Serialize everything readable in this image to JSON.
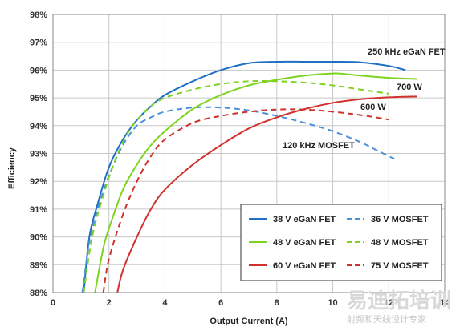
{
  "chart_data": {
    "type": "line",
    "title": "",
    "xlabel": "Output Current (A)",
    "ylabel": "Efficiency",
    "xlim": [
      0,
      14
    ],
    "ylim": [
      88,
      98
    ],
    "x_ticks": [
      "0",
      "2",
      "4",
      "6",
      "8",
      "10",
      "12",
      "14"
    ],
    "y_ticks": [
      "88%",
      "89%",
      "90%",
      "91%",
      "92%",
      "93%",
      "94%",
      "95%",
      "96%",
      "97%",
      "98%"
    ],
    "grid": true,
    "legend_position": "bottom-right",
    "annotations": [
      "250 kHz eGaN FET",
      "700 W",
      "600 W",
      "120 kHz MOSFET"
    ],
    "series": [
      {
        "name": "38 V eGaN FET",
        "color": "#1f6fc4",
        "dash": false,
        "x": [
          1.1,
          1.3,
          1.6,
          2.0,
          2.5,
          3.0,
          3.5,
          4.0,
          5.0,
          6.0,
          7.0,
          8.0,
          9.0,
          10.0,
          11.0,
          12.0,
          12.6
        ],
        "y": [
          88.0,
          90.0,
          91.2,
          92.5,
          93.5,
          94.2,
          94.7,
          95.1,
          95.6,
          96.0,
          96.25,
          96.3,
          96.3,
          96.3,
          96.28,
          96.15,
          96.0
        ]
      },
      {
        "name": "36 V MOSFET",
        "color": "#4a90d9",
        "dash": true,
        "x": [
          1.05,
          1.3,
          1.6,
          2.0,
          2.5,
          3.0,
          3.5,
          4.0,
          5.0,
          6.0,
          7.0,
          8.0,
          9.0,
          10.0,
          11.0,
          11.6,
          12.2
        ],
        "y": [
          88.0,
          89.8,
          91.0,
          92.2,
          93.3,
          94.0,
          94.3,
          94.5,
          94.65,
          94.65,
          94.55,
          94.35,
          94.1,
          93.8,
          93.4,
          93.1,
          92.8
        ]
      },
      {
        "name": "48 V eGaN FET",
        "color": "#7ed321",
        "dash": false,
        "x": [
          1.5,
          1.8,
          2.0,
          2.5,
          3.0,
          3.5,
          4.0,
          5.0,
          6.0,
          7.0,
          8.0,
          9.0,
          10.0,
          10.5,
          11.0,
          12.0,
          13.0
        ],
        "y": [
          88.0,
          89.6,
          90.3,
          91.7,
          92.6,
          93.3,
          93.8,
          94.6,
          95.1,
          95.45,
          95.65,
          95.8,
          95.88,
          95.85,
          95.8,
          95.72,
          95.68
        ]
      },
      {
        "name": "48 V MOSFET",
        "color": "#7ed321",
        "dash": true,
        "x": [
          1.1,
          1.4,
          1.8,
          2.2,
          2.6,
          3.0,
          3.5,
          4.0,
          5.0,
          6.0,
          7.0,
          8.0,
          9.0,
          10.0,
          11.0,
          12.0
        ],
        "y": [
          88.0,
          90.0,
          91.5,
          92.7,
          93.6,
          94.2,
          94.7,
          95.0,
          95.3,
          95.5,
          95.6,
          95.6,
          95.55,
          95.45,
          95.3,
          95.15
        ]
      },
      {
        "name": "60 V eGaN FET",
        "color": "#d0312d",
        "dash": false,
        "x": [
          2.3,
          2.5,
          3.0,
          3.5,
          4.0,
          5.0,
          6.0,
          7.0,
          8.0,
          9.0,
          10.0,
          11.0,
          12.0,
          13.0
        ],
        "y": [
          88.0,
          88.8,
          90.0,
          91.0,
          91.7,
          92.6,
          93.3,
          93.9,
          94.3,
          94.6,
          94.82,
          94.95,
          95.02,
          95.05
        ]
      },
      {
        "name": "75 V MOSFET",
        "color": "#d0312d",
        "dash": true,
        "x": [
          1.8,
          2.0,
          2.5,
          3.0,
          3.5,
          4.0,
          5.0,
          6.0,
          7.0,
          8.0,
          9.0,
          10.0,
          11.0,
          12.0
        ],
        "y": [
          88.0,
          89.2,
          90.8,
          92.0,
          92.9,
          93.5,
          94.1,
          94.35,
          94.5,
          94.58,
          94.58,
          94.5,
          94.38,
          94.22
        ]
      }
    ]
  },
  "watermark": {
    "line1": "易迪拓培训",
    "line2": "射频和天线设计专家"
  }
}
